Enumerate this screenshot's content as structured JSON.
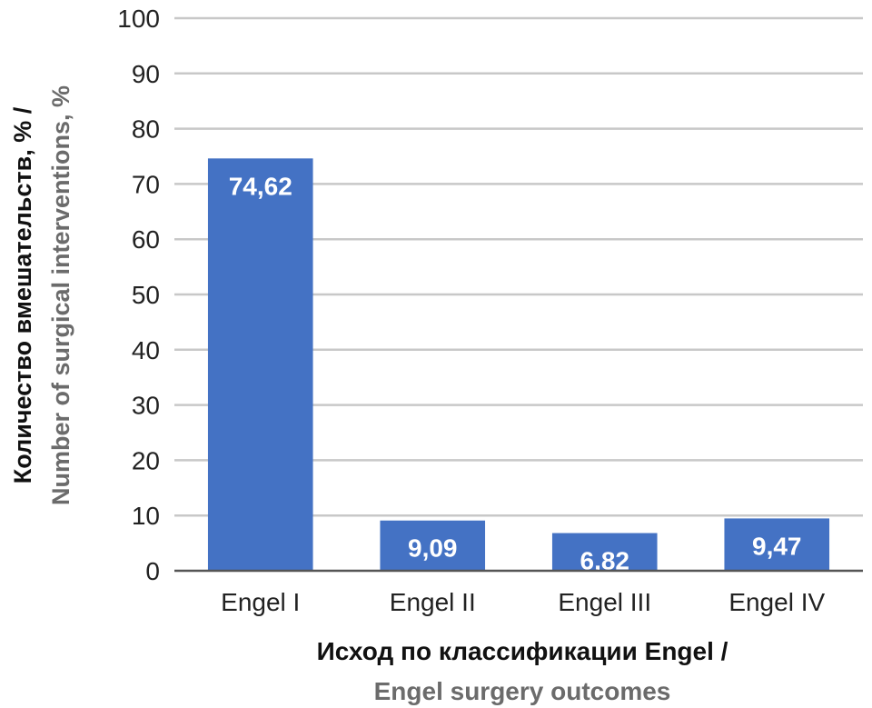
{
  "chart_data": {
    "type": "bar",
    "categories": [
      "Engel I",
      "Engel II",
      "Engel III",
      "Engel IV"
    ],
    "values": [
      74.62,
      9.09,
      6.82,
      9.47
    ],
    "data_labels": [
      "74,62",
      "9,09",
      "6,82",
      "9,47"
    ],
    "ylabel_line1": "Количество вмешательств, % /",
    "ylabel_line2": "Number of surgical interventions, %",
    "xlabel_line1": "Исход по классификации Engel /",
    "xlabel_line2": "Engel surgery outcomes",
    "ylim": [
      0,
      100
    ],
    "yticks": [
      0,
      10,
      20,
      30,
      40,
      50,
      60,
      70,
      80,
      90,
      100
    ],
    "grid": true,
    "legend": "none",
    "colors": {
      "bar": "#4472c4",
      "grid": "#c8c8c8",
      "axis": "#555555"
    }
  }
}
